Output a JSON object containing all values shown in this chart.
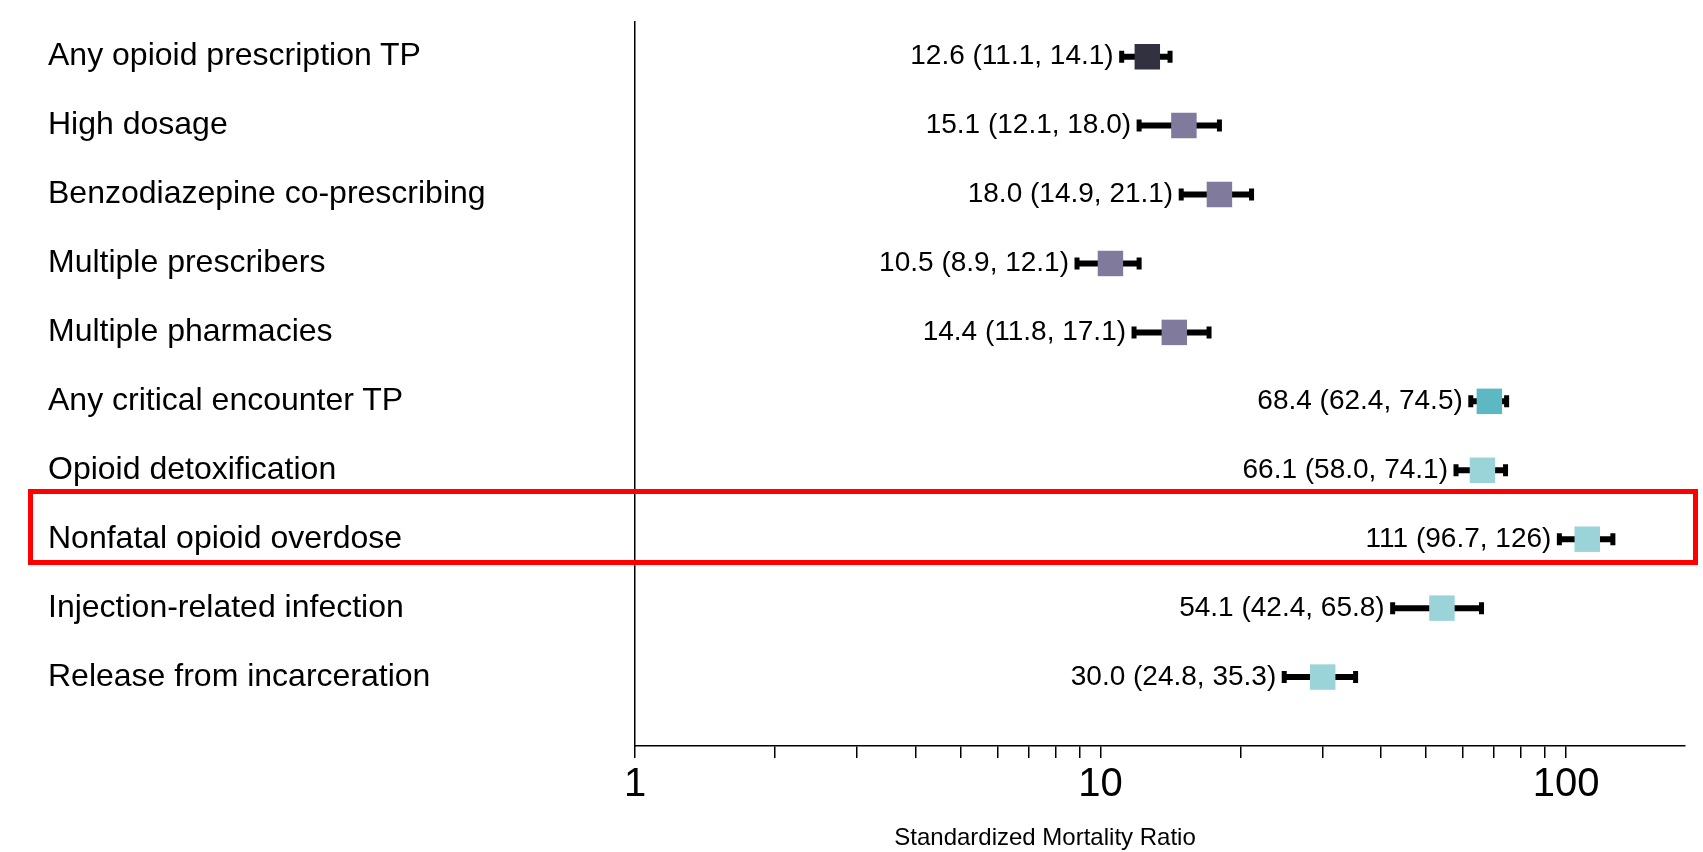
{
  "chart_data": {
    "type": "scatter",
    "orientation": "horizontal",
    "xlabel": "Standardized Mortality Ratio",
    "categories": [
      "Any opioid prescription TP",
      "High dosage",
      "Benzodiazepine co-prescribing",
      "Multiple prescribers",
      "Multiple pharmacies",
      "Any critical encounter TP",
      "Opioid detoxification",
      "Nonfatal opioid overdose",
      "Injection-related infection",
      "Release from incarceration"
    ],
    "values": [
      12.6,
      15.1,
      18.0,
      10.5,
      14.4,
      68.4,
      66.1,
      111,
      54.1,
      30.0
    ],
    "errors": [
      [
        11.1,
        14.1
      ],
      [
        12.1,
        18.0
      ],
      [
        14.9,
        21.1
      ],
      [
        8.9,
        12.1
      ],
      [
        11.8,
        17.1
      ],
      [
        62.4,
        74.5
      ],
      [
        58.0,
        74.1
      ],
      [
        96.7,
        126
      ],
      [
        42.4,
        65.8
      ],
      [
        24.8,
        35.3
      ]
    ],
    "value_labels": [
      "12.6 (11.1, 14.1)",
      "15.1 (12.1, 18.0)",
      "18.0 (14.9, 21.1)",
      "10.5 (8.9, 12.1)",
      "14.4 (11.8, 17.1)",
      "68.4 (62.4, 74.5)",
      "66.1 (58.0, 74.1)",
      "111 (96.7, 126)",
      "54.1 (42.4, 65.8)",
      "30.0 (24.8, 35.3)"
    ],
    "colors": [
      "#32313f",
      "#807b9c",
      "#807b9c",
      "#807b9c",
      "#807b9c",
      "#5cb8c2",
      "#9ad3d8",
      "#9ad3d8",
      "#9ad3d8",
      "#9ad3d8"
    ],
    "marker": "square",
    "log": "x",
    "grid": false,
    "legend": false,
    "xlim": [
      1,
      180
    ],
    "xticks": [
      1,
      {
        "value": 2,
        "label": null
      },
      {
        "value": 3,
        "label": null
      },
      {
        "value": 4,
        "label": null
      },
      {
        "value": 5,
        "label": null
      },
      {
        "value": 6,
        "label": null
      },
      {
        "value": 7,
        "label": null
      },
      {
        "value": 8,
        "label": null
      },
      {
        "value": 9,
        "label": null
      },
      10,
      {
        "value": 20,
        "label": null
      },
      {
        "value": 30,
        "label": null
      },
      {
        "value": 40,
        "label": null
      },
      {
        "value": 50,
        "label": null
      },
      {
        "value": 60,
        "label": null
      },
      {
        "value": 70,
        "label": null
      },
      {
        "value": 80,
        "label": null
      },
      {
        "value": 90,
        "label": null
      },
      100
    ]
  }
}
